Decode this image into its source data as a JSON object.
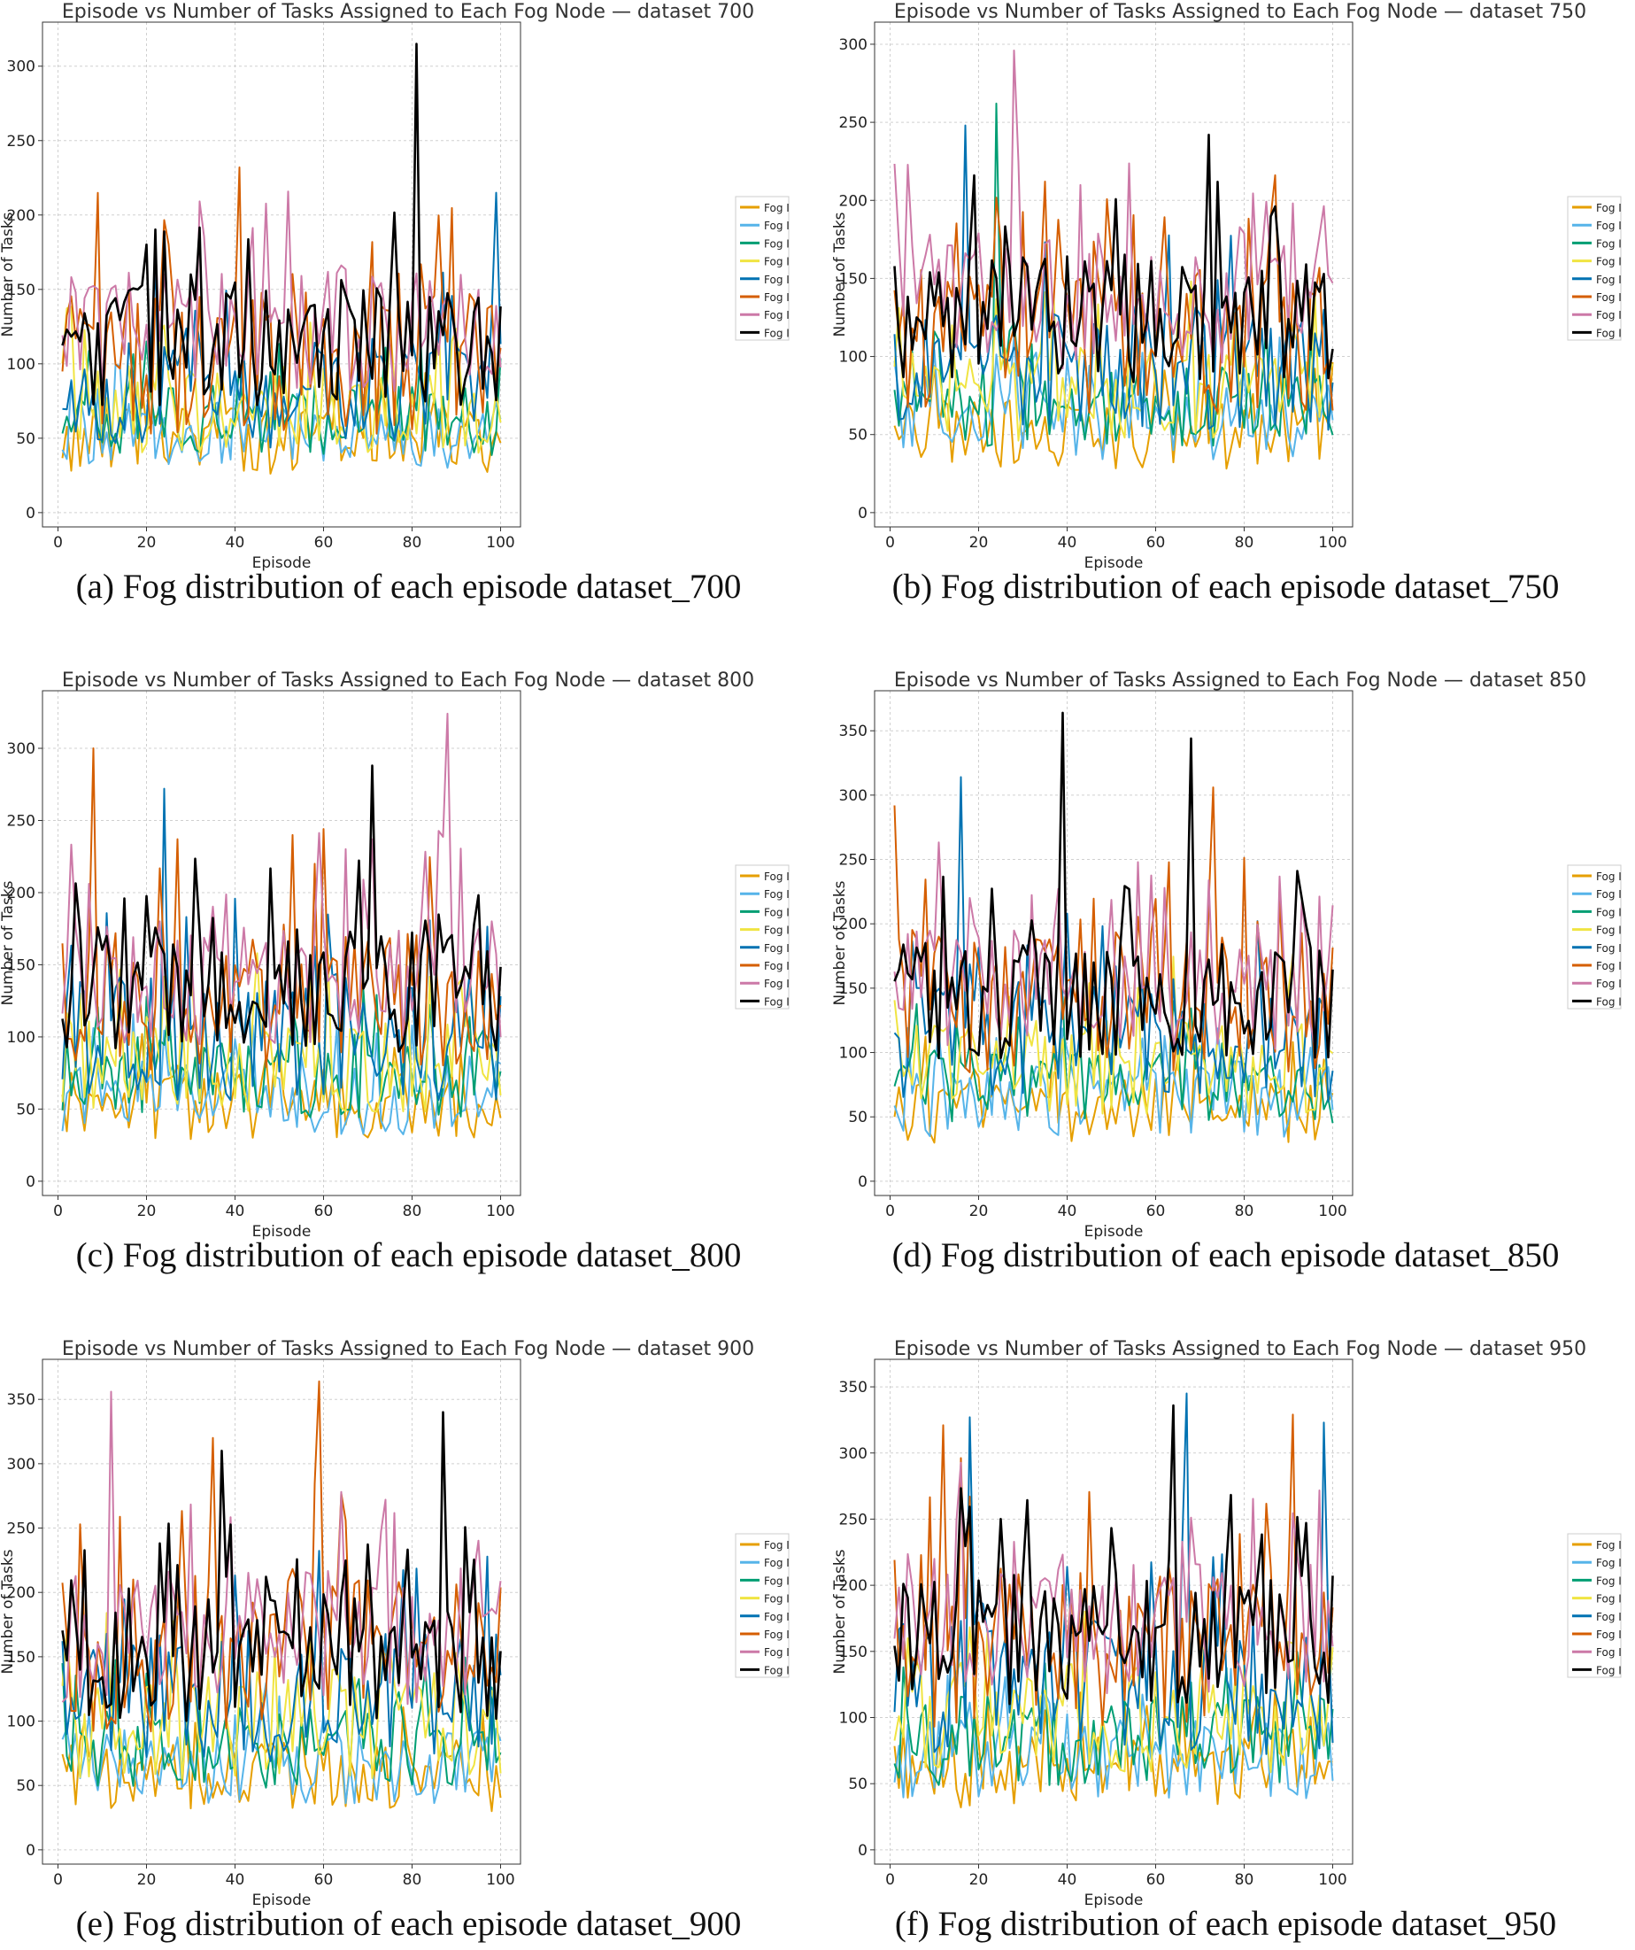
{
  "figure": {
    "panels": [
      {
        "caption": "(a) Fog distribution of each episode dataset_700"
      },
      {
        "caption": "(b) Fog distribution of each episode dataset_750"
      },
      {
        "caption": "(c) Fog distribution of each episode dataset_800"
      },
      {
        "caption": "(d) Fog distribution of each episode dataset_850"
      },
      {
        "caption": "(e) Fog distribution of each episode dataset_900"
      },
      {
        "caption": "(f) Fog distribution of each episode dataset_950"
      }
    ]
  },
  "series_colors": [
    "#E69F00",
    "#56B4E9",
    "#009E73",
    "#F0E442",
    "#0072B2",
    "#D55E00",
    "#CC79A7",
    "#000000"
  ],
  "chart_data": [
    {
      "type": "line",
      "title": "Episode vs Number of Tasks Assigned to Each Fog Node — dataset 700",
      "xlabel": "Episode",
      "ylabel": "Number of Tasks",
      "xlim": [
        1,
        100
      ],
      "ylim": [
        0,
        320
      ],
      "xticks": [
        0,
        20,
        40,
        60,
        80,
        100
      ],
      "yticks": [
        0,
        50,
        100,
        150,
        200,
        250,
        300
      ],
      "grid": true,
      "legend": "right",
      "series_base": [
        48,
        52,
        62,
        70,
        78,
        102,
        122,
        112
      ],
      "series_spread": [
        22,
        22,
        24,
        30,
        38,
        50,
        42,
        40
      ],
      "peaks": [
        {
          "series": 7,
          "episode": 81,
          "value": 315
        },
        {
          "series": 5,
          "episode": 41,
          "value": 232
        },
        {
          "series": 4,
          "episode": 99,
          "value": 215
        }
      ],
      "series": [
        {
          "name": "Fog I"
        },
        {
          "name": "Fog I"
        },
        {
          "name": "Fog I"
        },
        {
          "name": "Fog I"
        },
        {
          "name": "Fog I"
        },
        {
          "name": "Fog I"
        },
        {
          "name": "Fog I"
        },
        {
          "name": "Fog I"
        }
      ]
    },
    {
      "type": "line",
      "title": "Episode vs Number of Tasks Assigned to Each Fog Node — dataset 750",
      "xlabel": "Episode",
      "ylabel": "Number of Tasks",
      "xlim": [
        1,
        100
      ],
      "ylim": [
        0,
        305
      ],
      "xticks": [
        0,
        20,
        40,
        60,
        80,
        100
      ],
      "yticks": [
        0,
        50,
        100,
        150,
        200,
        250,
        300
      ],
      "grid": true,
      "legend": "right",
      "series_base": [
        50,
        58,
        68,
        78,
        92,
        112,
        135,
        125
      ],
      "series_spread": [
        22,
        24,
        26,
        32,
        40,
        48,
        44,
        42
      ],
      "peaks": [
        {
          "series": 6,
          "episode": 28,
          "value": 296
        },
        {
          "series": 2,
          "episode": 24,
          "value": 262
        },
        {
          "series": 4,
          "episode": 17,
          "value": 248
        },
        {
          "series": 7,
          "episode": 72,
          "value": 242
        }
      ],
      "series": [
        {
          "name": "Fog I"
        },
        {
          "name": "Fog I"
        },
        {
          "name": "Fog I"
        },
        {
          "name": "Fog I"
        },
        {
          "name": "Fog I"
        },
        {
          "name": "Fog I"
        },
        {
          "name": "Fog I"
        },
        {
          "name": "Fog I"
        }
      ]
    },
    {
      "type": "line",
      "title": "Episode vs Number of Tasks Assigned to Each Fog Node — dataset 800",
      "xlabel": "Episode",
      "ylabel": "Number of Tasks",
      "xlim": [
        1,
        100
      ],
      "ylim": [
        0,
        330
      ],
      "xticks": [
        0,
        20,
        40,
        60,
        80,
        100
      ],
      "yticks": [
        0,
        50,
        100,
        150,
        200,
        250,
        300
      ],
      "grid": true,
      "legend": "right",
      "series_base": [
        52,
        58,
        72,
        80,
        100,
        128,
        140,
        132
      ],
      "series_spread": [
        24,
        26,
        28,
        34,
        44,
        52,
        46,
        44
      ],
      "peaks": [
        {
          "series": 6,
          "episode": 88,
          "value": 324
        },
        {
          "series": 5,
          "episode": 8,
          "value": 300
        },
        {
          "series": 7,
          "episode": 71,
          "value": 288
        },
        {
          "series": 4,
          "episode": 24,
          "value": 272
        }
      ],
      "series": [
        {
          "name": "Fog I"
        },
        {
          "name": "Fog I"
        },
        {
          "name": "Fog I"
        },
        {
          "name": "Fog I"
        },
        {
          "name": "Fog I"
        },
        {
          "name": "Fog I"
        },
        {
          "name": "Fog I"
        },
        {
          "name": "Fog I"
        }
      ]
    },
    {
      "type": "line",
      "title": "Episode vs Number of Tasks Assigned to Each Fog Node — dataset 850",
      "xlabel": "Episode",
      "ylabel": "Number of Tasks",
      "xlim": [
        1,
        100
      ],
      "ylim": [
        0,
        370
      ],
      "xticks": [
        0,
        20,
        40,
        60,
        80,
        100
      ],
      "yticks": [
        0,
        50,
        100,
        150,
        200,
        250,
        300,
        350
      ],
      "grid": true,
      "legend": "right",
      "series_base": [
        55,
        62,
        75,
        90,
        110,
        140,
        150,
        140
      ],
      "series_spread": [
        26,
        28,
        30,
        38,
        48,
        56,
        50,
        46
      ],
      "peaks": [
        {
          "series": 7,
          "episode": 39,
          "value": 364
        },
        {
          "series": 7,
          "episode": 68,
          "value": 344
        },
        {
          "series": 4,
          "episode": 16,
          "value": 314
        },
        {
          "series": 5,
          "episode": 73,
          "value": 306
        },
        {
          "series": 5,
          "episode": 1,
          "value": 292
        }
      ],
      "series": [
        {
          "name": "Fog I"
        },
        {
          "name": "Fog I"
        },
        {
          "name": "Fog I"
        },
        {
          "name": "Fog I"
        },
        {
          "name": "Fog I"
        },
        {
          "name": "Fog I"
        },
        {
          "name": "Fog I"
        },
        {
          "name": "Fog I"
        }
      ]
    },
    {
      "type": "line",
      "title": "Episode vs Number of Tasks Assigned to Each Fog Node — dataset 900",
      "xlabel": "Episode",
      "ylabel": "Number of Tasks",
      "xlim": [
        1,
        100
      ],
      "ylim": [
        0,
        370
      ],
      "xticks": [
        0,
        20,
        40,
        60,
        80,
        100
      ],
      "yticks": [
        0,
        50,
        100,
        150,
        200,
        250,
        300,
        350
      ],
      "grid": true,
      "legend": "right",
      "series_base": [
        58,
        66,
        80,
        95,
        118,
        150,
        165,
        150
      ],
      "series_spread": [
        28,
        30,
        32,
        40,
        50,
        60,
        52,
        50
      ],
      "peaks": [
        {
          "series": 5,
          "episode": 59,
          "value": 364
        },
        {
          "series": 6,
          "episode": 12,
          "value": 356
        },
        {
          "series": 7,
          "episode": 87,
          "value": 340
        },
        {
          "series": 5,
          "episode": 35,
          "value": 320
        },
        {
          "series": 7,
          "episode": 37,
          "value": 310
        }
      ],
      "series": [
        {
          "name": "Fog I"
        },
        {
          "name": "Fog I"
        },
        {
          "name": "Fog I"
        },
        {
          "name": "Fog I"
        },
        {
          "name": "Fog I"
        },
        {
          "name": "Fog I"
        },
        {
          "name": "Fog I"
        },
        {
          "name": "Fog I"
        }
      ]
    },
    {
      "type": "line",
      "title": "Episode vs Number of Tasks Assigned to Each Fog Node — dataset 950",
      "xlabel": "Episode",
      "ylabel": "Number of Tasks",
      "xlim": [
        1,
        100
      ],
      "ylim": [
        0,
        360
      ],
      "xticks": [
        0,
        20,
        40,
        60,
        80,
        100
      ],
      "yticks": [
        0,
        50,
        100,
        150,
        200,
        250,
        300,
        350
      ],
      "grid": true,
      "legend": "right",
      "series_base": [
        60,
        68,
        82,
        100,
        122,
        155,
        170,
        160
      ],
      "series_spread": [
        28,
        30,
        34,
        42,
        52,
        62,
        54,
        50
      ],
      "peaks": [
        {
          "series": 4,
          "episode": 67,
          "value": 345
        },
        {
          "series": 7,
          "episode": 64,
          "value": 336
        },
        {
          "series": 5,
          "episode": 91,
          "value": 329
        },
        {
          "series": 4,
          "episode": 18,
          "value": 327
        },
        {
          "series": 4,
          "episode": 98,
          "value": 323
        },
        {
          "series": 5,
          "episode": 12,
          "value": 321
        }
      ],
      "series": [
        {
          "name": "Fog I"
        },
        {
          "name": "Fog I"
        },
        {
          "name": "Fog I"
        },
        {
          "name": "Fog I"
        },
        {
          "name": "Fog I"
        },
        {
          "name": "Fog I"
        },
        {
          "name": "Fog I"
        },
        {
          "name": "Fog I"
        }
      ]
    }
  ]
}
